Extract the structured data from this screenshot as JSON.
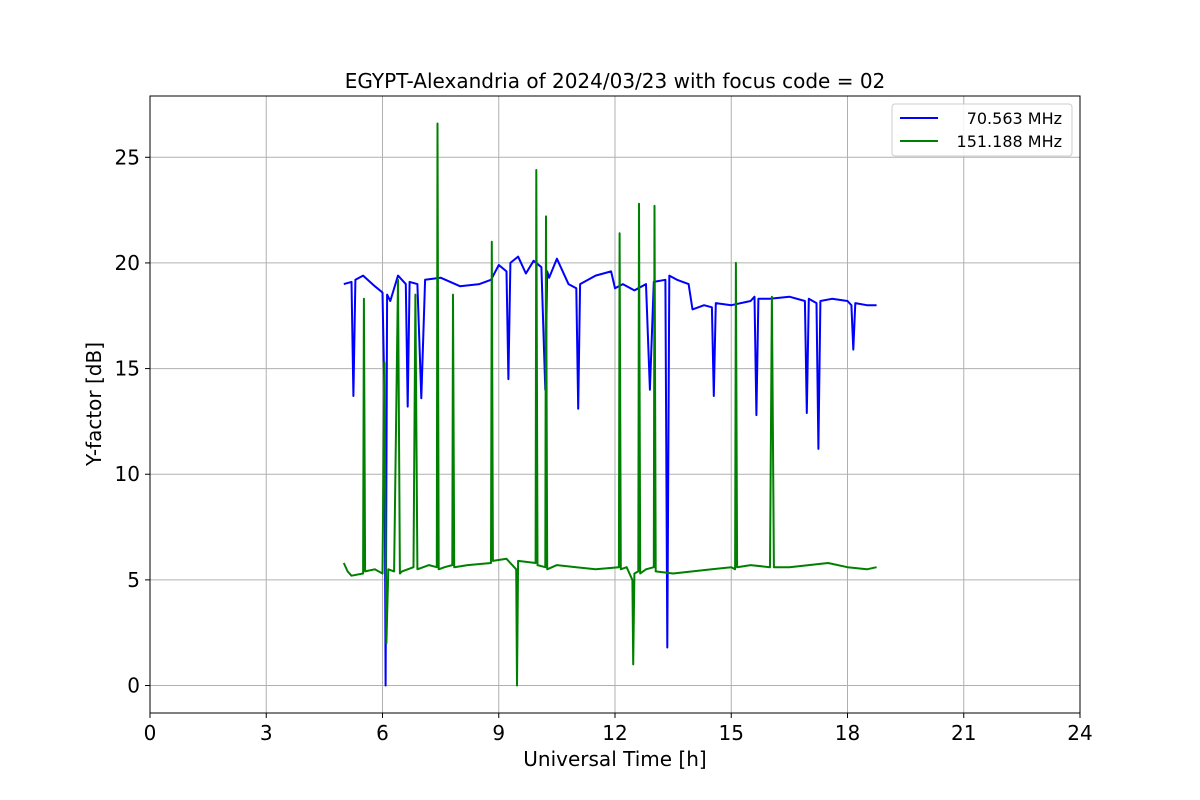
{
  "chart_data": {
    "type": "line",
    "title": "EGYPT-Alexandria of 2024/03/23 with focus code = 02",
    "xlabel": "Universal Time [h]",
    "ylabel": "Y-factor [dB]",
    "xlim": [
      0,
      24
    ],
    "ylim": [
      -1.3,
      27.9
    ],
    "xticks": [
      0,
      3,
      6,
      9,
      12,
      15,
      18,
      21,
      24
    ],
    "yticks": [
      0,
      5,
      10,
      15,
      20,
      25
    ],
    "grid": true,
    "legend_position": "top-right",
    "series": [
      {
        "name": "70.563 MHz",
        "color": "#0000ff",
        "x": [
          5.0,
          5.2,
          5.25,
          5.3,
          5.5,
          5.8,
          6.0,
          6.05,
          6.08,
          6.12,
          6.2,
          6.4,
          6.5,
          6.6,
          6.65,
          6.7,
          6.9,
          7.0,
          7.1,
          7.5,
          8.0,
          8.5,
          8.8,
          9.0,
          9.2,
          9.25,
          9.3,
          9.5,
          9.7,
          9.9,
          10.1,
          10.2,
          10.25,
          10.3,
          10.5,
          10.8,
          11.0,
          11.05,
          11.1,
          11.5,
          11.9,
          12.0,
          12.2,
          12.5,
          12.8,
          12.9,
          13.0,
          13.3,
          13.35,
          13.4,
          13.6,
          13.9,
          14.0,
          14.3,
          14.5,
          14.55,
          14.6,
          15.0,
          15.5,
          15.6,
          15.65,
          15.7,
          16.0,
          16.5,
          16.9,
          16.95,
          17.0,
          17.2,
          17.25,
          17.3,
          17.6,
          18.0,
          18.1,
          18.15,
          18.2,
          18.5,
          18.75
        ],
        "y": [
          19.0,
          19.1,
          13.7,
          19.2,
          19.4,
          18.9,
          18.6,
          13.8,
          0.0,
          18.5,
          18.2,
          19.4,
          19.2,
          19.0,
          13.2,
          19.1,
          19.0,
          13.6,
          19.2,
          19.3,
          18.9,
          19.0,
          19.2,
          19.9,
          19.6,
          14.5,
          20.0,
          20.3,
          19.5,
          20.1,
          19.8,
          14.0,
          19.6,
          19.3,
          20.2,
          19.0,
          18.8,
          13.1,
          19.0,
          19.4,
          19.6,
          18.8,
          19.0,
          18.7,
          19.0,
          14.0,
          19.1,
          19.2,
          1.8,
          19.4,
          19.2,
          19.0,
          17.8,
          18.0,
          17.9,
          13.7,
          18.1,
          18.0,
          18.2,
          18.4,
          12.8,
          18.3,
          18.3,
          18.4,
          18.2,
          12.9,
          18.3,
          18.1,
          11.2,
          18.2,
          18.3,
          18.2,
          18.0,
          15.9,
          18.1,
          18.0,
          18.0
        ]
      },
      {
        "name": "151.188 MHz",
        "color": "#008000",
        "x": [
          5.0,
          5.1,
          5.2,
          5.5,
          5.52,
          5.55,
          5.8,
          6.0,
          6.05,
          6.1,
          6.15,
          6.3,
          6.4,
          6.45,
          6.5,
          6.8,
          6.85,
          6.9,
          7.2,
          7.4,
          7.42,
          7.45,
          7.6,
          7.8,
          7.82,
          7.85,
          8.2,
          8.8,
          8.82,
          8.85,
          9.2,
          9.45,
          9.47,
          9.5,
          9.95,
          9.97,
          10.0,
          10.2,
          10.22,
          10.25,
          10.5,
          11.0,
          11.5,
          12.1,
          12.12,
          12.15,
          12.3,
          12.45,
          12.47,
          12.5,
          12.6,
          12.62,
          12.65,
          12.8,
          13.0,
          13.02,
          13.05,
          13.5,
          14.0,
          14.5,
          15.0,
          15.1,
          15.12,
          15.15,
          15.5,
          16.0,
          16.05,
          16.1,
          16.5,
          17.0,
          17.5,
          18.0,
          18.5,
          18.75
        ],
        "y": [
          5.8,
          5.4,
          5.2,
          5.3,
          18.3,
          5.4,
          5.5,
          5.3,
          15.3,
          2.0,
          5.5,
          5.4,
          19.2,
          5.3,
          5.4,
          5.6,
          18.5,
          5.5,
          5.7,
          5.6,
          26.6,
          5.5,
          5.6,
          5.7,
          18.5,
          5.6,
          5.7,
          5.8,
          21.0,
          5.9,
          6.0,
          5.5,
          0.0,
          5.9,
          5.8,
          24.4,
          5.7,
          5.6,
          22.2,
          5.5,
          5.7,
          5.6,
          5.5,
          5.6,
          21.4,
          5.5,
          5.6,
          5.0,
          1.0,
          5.3,
          5.4,
          22.8,
          5.3,
          5.5,
          5.6,
          22.7,
          5.4,
          5.3,
          5.4,
          5.5,
          5.6,
          5.5,
          20.0,
          5.6,
          5.7,
          5.6,
          18.4,
          5.6,
          5.6,
          5.7,
          5.8,
          5.6,
          5.5,
          5.6
        ]
      }
    ]
  }
}
